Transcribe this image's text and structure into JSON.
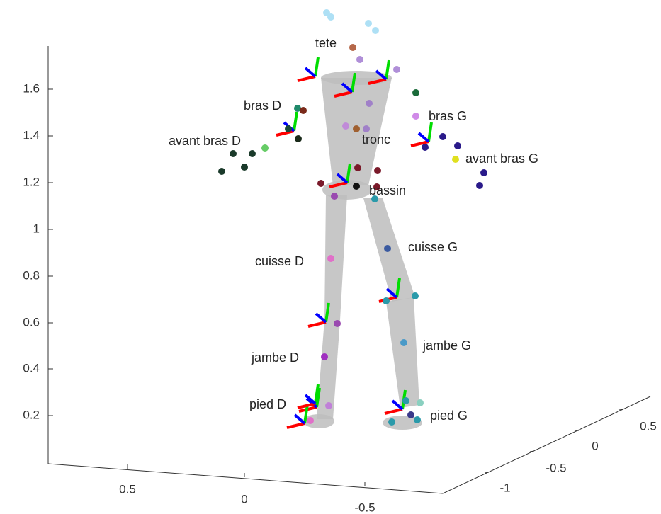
{
  "axes": {
    "z_ticks": [
      "1.6",
      "1.4",
      "1.2",
      "1",
      "0.8",
      "0.6",
      "0.4",
      "0.2"
    ],
    "x_ticks": [
      "0.5",
      "0",
      "-0.5"
    ],
    "y_ticks": [
      "0.5",
      "0",
      "-0.5",
      "-1"
    ]
  },
  "segments": [
    "tete",
    "bras D",
    "avant bras D",
    "bras G",
    "tronc",
    "avant bras G",
    "bassin",
    "cuisse G",
    "cuisse D",
    "jambe G",
    "jambe D",
    "pied D",
    "pied G"
  ]
}
